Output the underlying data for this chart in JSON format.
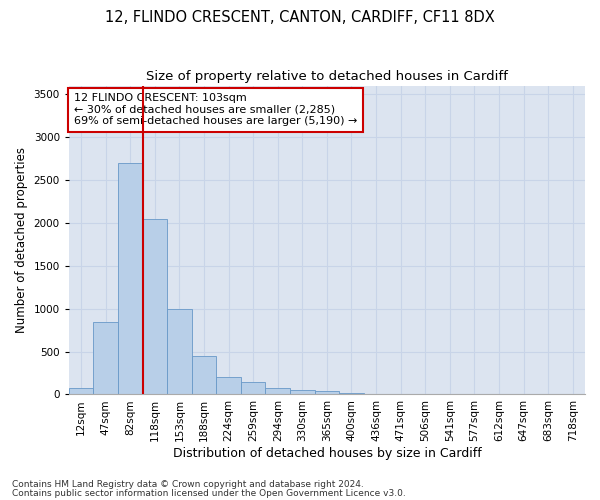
{
  "title1": "12, FLINDO CRESCENT, CANTON, CARDIFF, CF11 8DX",
  "title2": "Size of property relative to detached houses in Cardiff",
  "xlabel": "Distribution of detached houses by size in Cardiff",
  "ylabel": "Number of detached properties",
  "categories": [
    "12sqm",
    "47sqm",
    "82sqm",
    "118sqm",
    "153sqm",
    "188sqm",
    "224sqm",
    "259sqm",
    "294sqm",
    "330sqm",
    "365sqm",
    "400sqm",
    "436sqm",
    "471sqm",
    "506sqm",
    "541sqm",
    "577sqm",
    "612sqm",
    "647sqm",
    "683sqm",
    "718sqm"
  ],
  "values": [
    75,
    850,
    2700,
    2050,
    1000,
    450,
    200,
    140,
    75,
    50,
    35,
    20,
    10,
    5,
    0,
    0,
    0,
    0,
    0,
    0,
    0
  ],
  "bar_color": "#b8cfe8",
  "bar_edge_color": "#6898c8",
  "grid_color": "#c8d4e8",
  "background_color": "#dce4f0",
  "annotation_text": "12 FLINDO CRESCENT: 103sqm\n← 30% of detached houses are smaller (2,285)\n69% of semi-detached houses are larger (5,190) →",
  "annotation_box_facecolor": "#ffffff",
  "annotation_border_color": "#cc0000",
  "ylim": [
    0,
    3600
  ],
  "yticks": [
    0,
    500,
    1000,
    1500,
    2000,
    2500,
    3000,
    3500
  ],
  "footer1": "Contains HM Land Registry data © Crown copyright and database right 2024.",
  "footer2": "Contains public sector information licensed under the Open Government Licence v3.0.",
  "title1_fontsize": 10.5,
  "title2_fontsize": 9.5,
  "xlabel_fontsize": 9,
  "ylabel_fontsize": 8.5,
  "tick_fontsize": 7.5,
  "annotation_fontsize": 8,
  "footer_fontsize": 6.5,
  "red_line_index": 3
}
